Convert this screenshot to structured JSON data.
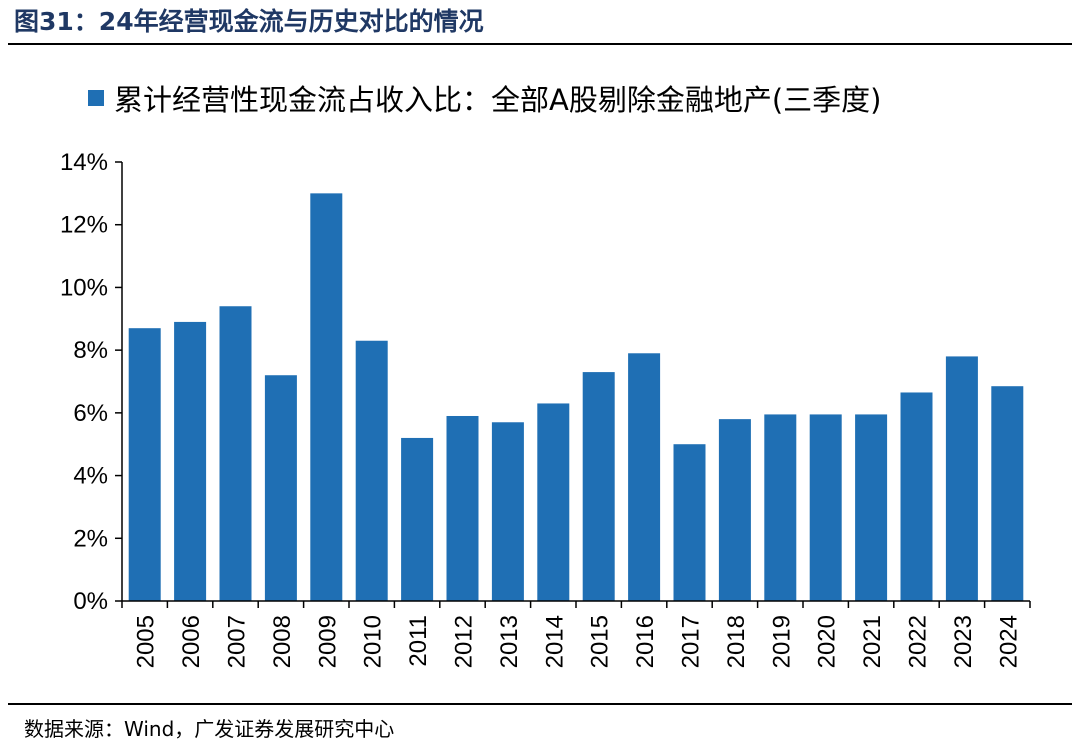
{
  "figure": {
    "number": "图31：",
    "title": "24年经营现金流与历史对比的情况",
    "source_label": "数据来源：",
    "source_text": "Wind，广发证券发展研究中心"
  },
  "colors": {
    "bar": "#1f6fb4",
    "title": "#1f3864"
  },
  "chart_data": {
    "type": "bar",
    "legend": "累计经营性现金流占收入比：全部A股剔除金融地产(三季度)",
    "legend_position": "top",
    "categories": [
      "2005",
      "2006",
      "2007",
      "2008",
      "2009",
      "2010",
      "2011",
      "2012",
      "2013",
      "2014",
      "2015",
      "2016",
      "2017",
      "2018",
      "2019",
      "2020",
      "2021",
      "2022",
      "2023",
      "2024"
    ],
    "series": [
      {
        "name": "累计经营性现金流占收入比：全部A股剔除金融地产(三季度)",
        "values": [
          8.7,
          8.9,
          9.4,
          7.2,
          13.0,
          8.3,
          5.2,
          5.9,
          5.7,
          6.3,
          7.3,
          7.9,
          5.0,
          5.8,
          5.95,
          5.95,
          5.95,
          6.65,
          7.8,
          6.85
        ]
      }
    ],
    "ylim": [
      0,
      14
    ],
    "yticks": [
      0,
      2,
      4,
      6,
      8,
      10,
      12,
      14
    ],
    "ytick_labels": [
      "0%",
      "2%",
      "4%",
      "6%",
      "8%",
      "10%",
      "12%",
      "14%"
    ],
    "xlabel": "",
    "ylabel": "",
    "grid": false
  }
}
